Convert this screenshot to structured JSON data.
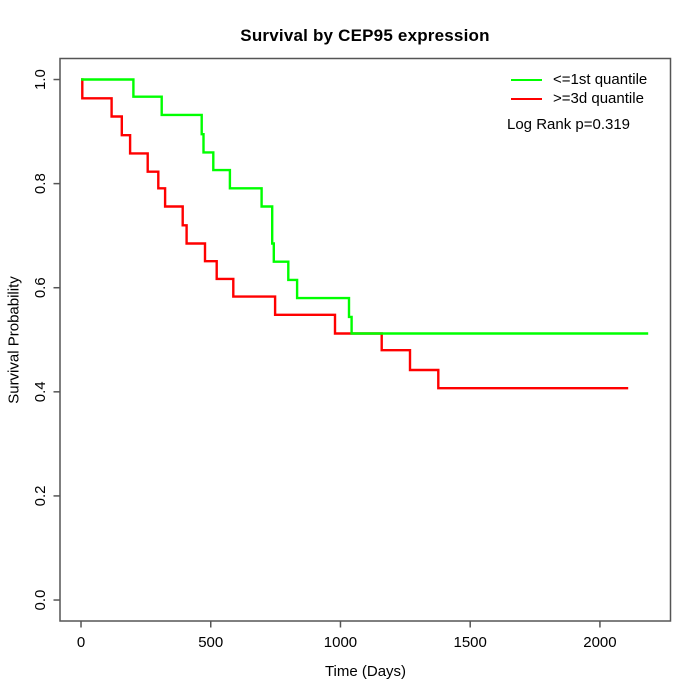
{
  "window": {
    "background": "#ffffff"
  },
  "chart_data": {
    "type": "line",
    "subtype": "kaplan-meier-step",
    "title": "Survival by CEP95 expression",
    "xlabel": "Time (Days)",
    "ylabel": "Survival Probability",
    "xlim": [
      -81,
      2272
    ],
    "ylim": [
      -0.0403,
      1.0404
    ],
    "xticks": [
      0,
      500,
      1000,
      1500,
      2000
    ],
    "xtick_labels": [
      "0",
      "500",
      "1000",
      "1500",
      "2000"
    ],
    "yticks": [
      0.0,
      0.2,
      0.4,
      0.6,
      0.8,
      1.0
    ],
    "ytick_labels": [
      "0.0",
      "0.2",
      "0.4",
      "0.6",
      "0.8",
      "1.0"
    ],
    "grid": false,
    "legend_position": "top-right",
    "annotation": "Log Rank p=0.319",
    "axis_color": "#555555",
    "text_color": "#000000",
    "series": [
      {
        "name": "<=1st quantile",
        "color": "#00FF00",
        "step_points": [
          [
            0,
            1.0
          ],
          [
            202,
            0.967
          ],
          [
            311,
            0.932
          ],
          [
            465,
            0.895
          ],
          [
            472,
            0.86
          ],
          [
            510,
            0.826
          ],
          [
            574,
            0.791
          ],
          [
            696,
            0.756
          ],
          [
            737,
            0.685
          ],
          [
            743,
            0.65
          ],
          [
            799,
            0.615
          ],
          [
            833,
            0.58
          ],
          [
            1033,
            0.544
          ],
          [
            1043,
            0.512
          ]
        ],
        "end_time": 2186
      },
      {
        "name": ">=3d quantile",
        "color": "#FF0000",
        "step_points": [
          [
            0,
            1.0
          ],
          [
            5,
            0.964
          ],
          [
            118,
            0.929
          ],
          [
            157,
            0.893
          ],
          [
            189,
            0.858
          ],
          [
            257,
            0.823
          ],
          [
            298,
            0.791
          ],
          [
            324,
            0.756
          ],
          [
            392,
            0.72
          ],
          [
            407,
            0.685
          ],
          [
            478,
            0.651
          ],
          [
            523,
            0.617
          ],
          [
            587,
            0.583
          ],
          [
            748,
            0.548
          ],
          [
            979,
            0.512
          ],
          [
            1159,
            0.48
          ],
          [
            1268,
            0.442
          ],
          [
            1377,
            0.407
          ]
        ],
        "end_time": 2109
      }
    ]
  }
}
